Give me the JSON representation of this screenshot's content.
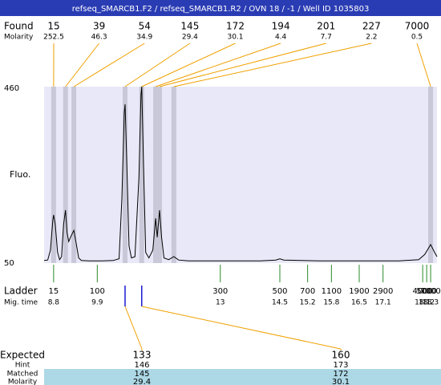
{
  "chart_data": {
    "type": "line",
    "title": "refseq_SMARCB1.F2 / refseq_SMARCB1.R2 / OVN 18 / -1 / Well ID 1035803",
    "ylabel": "Fluo.",
    "xlim": [
      8.56,
      18.46
    ],
    "ylim": [
      50,
      460
    ],
    "yticks": [
      50,
      460
    ],
    "x": [
      8.56,
      8.65,
      8.72,
      8.78,
      8.8,
      8.84,
      8.9,
      8.95,
      9.0,
      9.05,
      9.1,
      9.14,
      9.18,
      9.25,
      9.31,
      9.37,
      9.43,
      9.5,
      9.7,
      10.0,
      10.3,
      10.45,
      10.52,
      10.58,
      10.6,
      10.64,
      10.7,
      10.76,
      10.85,
      10.95,
      11.0,
      11.02,
      11.06,
      11.12,
      11.2,
      11.3,
      11.37,
      11.41,
      11.47,
      11.52,
      11.58,
      11.7,
      11.83,
      11.95,
      12.2,
      13.0,
      14.0,
      14.4,
      14.5,
      14.6,
      15.5,
      16.5,
      17.5,
      18.0,
      18.15,
      18.3,
      18.4,
      18.46
    ],
    "series": [
      {
        "color": "#000000",
        "values": [
          56,
          57,
          80,
          150,
          162,
          140,
          75,
          58,
          65,
          140,
          173,
          120,
          100,
          115,
          126,
          95,
          62,
          56,
          55,
          55,
          56,
          60,
          200,
          400,
          419,
          300,
          90,
          62,
          65,
          250,
          440,
          460,
          300,
          75,
          62,
          80,
          154,
          110,
          173,
          110,
          62,
          58,
          65,
          57,
          55,
          55,
          55,
          57,
          60,
          57,
          55,
          55,
          55,
          58,
          70,
          93,
          75,
          65
        ]
      }
    ],
    "found": {
      "label": "Found",
      "molarity_label": "Molarity",
      "peaks": [
        {
          "size": 15,
          "molarity": 252.5,
          "time": 8.8
        },
        {
          "size": 39,
          "molarity": 46.3,
          "time": 9.1
        },
        {
          "size": 54,
          "molarity": 34.9,
          "time": 9.31
        },
        {
          "size": 145,
          "molarity": 29.4,
          "time": 10.6
        },
        {
          "size": 172,
          "molarity": 30.1,
          "time": 11.02
        },
        {
          "size": 194,
          "molarity": 4.4,
          "time": 11.37
        },
        {
          "size": 201,
          "molarity": 7.7,
          "time": 11.47
        },
        {
          "size": 227,
          "molarity": 2.2,
          "time": 11.83
        },
        {
          "size": 7000,
          "molarity": 0.5,
          "time": 18.3
        }
      ]
    },
    "ladder": {
      "label": "Ladder",
      "time_label": "Mig. time",
      "sizes": [
        15,
        100,
        300,
        500,
        700,
        1100,
        1900,
        2900,
        4000,
        5000,
        7000
      ],
      "times": [
        8.8,
        9.9,
        13,
        14.5,
        15.2,
        15.8,
        16.5,
        17.1,
        18.1,
        18.2,
        18.3
      ]
    },
    "expected": {
      "label": "Expected",
      "hint_label": "Hint",
      "matched_label": "Matched",
      "molarity_label": "Molarity",
      "columns": [
        {
          "size": 133,
          "hint": 146,
          "matched": 145,
          "molarity": 29.4,
          "time": 10.6
        },
        {
          "size": 160,
          "hint": 173,
          "matched": 172,
          "molarity": 30.1,
          "time": 11.02
        }
      ]
    }
  }
}
